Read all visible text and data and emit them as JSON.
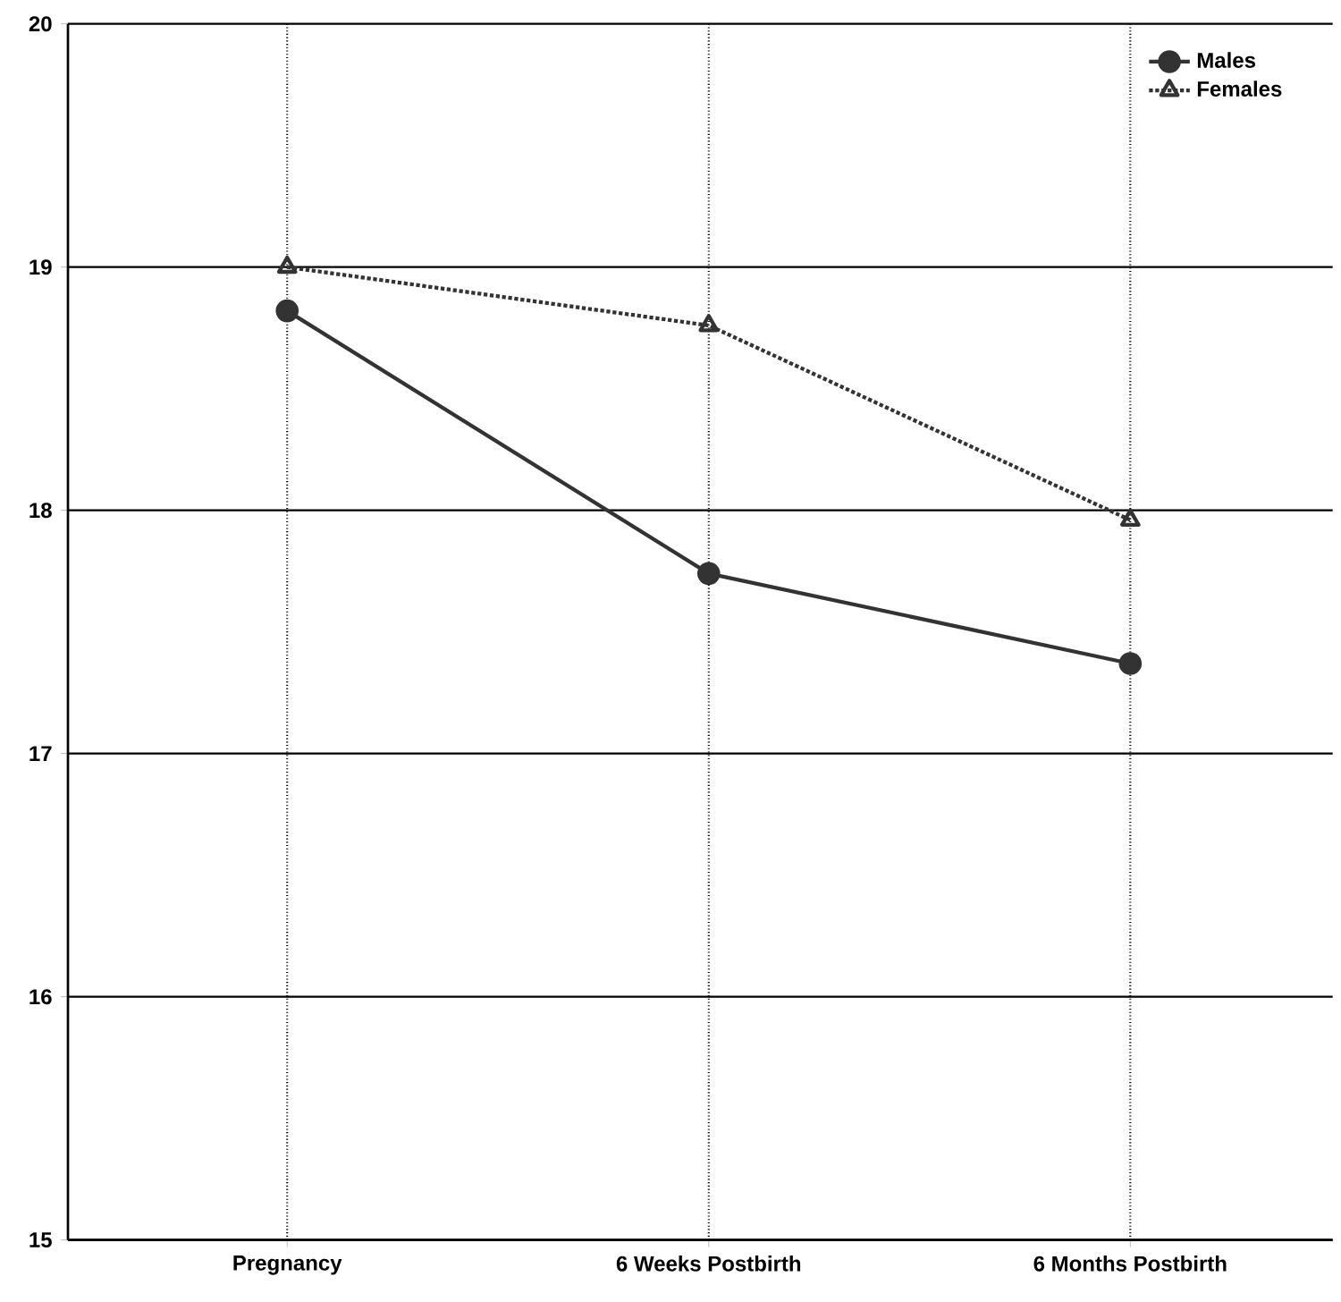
{
  "chart_data": {
    "type": "line",
    "categories": [
      "Pregnancy",
      "6 Weeks Postbirth",
      "6 Months Postbirth"
    ],
    "series": [
      {
        "name": "Males",
        "color": "#333333",
        "values": [
          18.82,
          17.74,
          17.37
        ],
        "marker": "circle",
        "line_style": "solid"
      },
      {
        "name": "Females",
        "color": "#333333",
        "values": [
          19.0,
          18.76,
          17.96
        ],
        "marker": "triangle",
        "line_style": "dotted"
      }
    ],
    "ylim": [
      15,
      20
    ],
    "yticks": [
      15,
      16,
      17,
      18,
      19,
      20
    ],
    "grid": true,
    "legend": "top right"
  }
}
